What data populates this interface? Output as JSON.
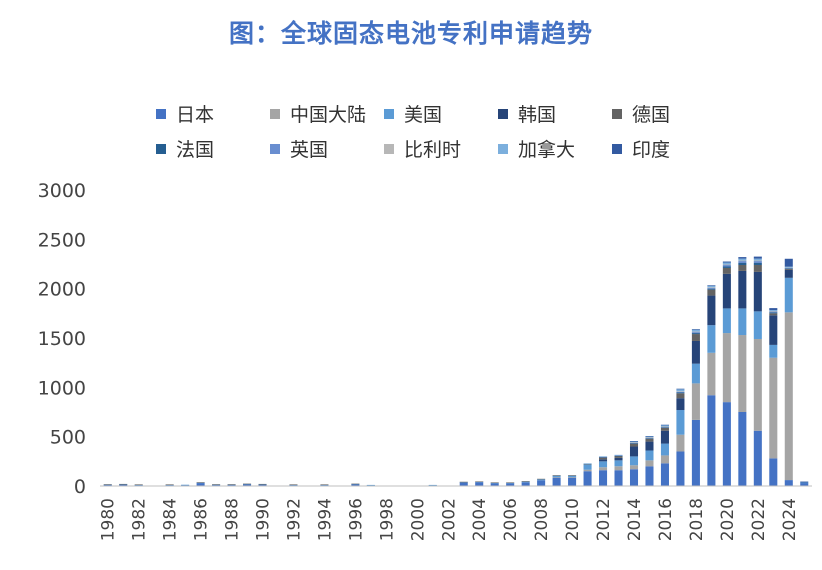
{
  "chart_data": {
    "type": "bar",
    "stacked": true,
    "title": "图：全球固态电池专利申请趋势",
    "xlabel": "",
    "ylabel": "",
    "ylim": [
      0,
      3000
    ],
    "yticks": [
      0,
      500,
      1000,
      1500,
      2000,
      2500,
      3000
    ],
    "legend_position": "top",
    "x": [
      1980,
      1981,
      1982,
      1983,
      1984,
      1985,
      1986,
      1987,
      1988,
      1989,
      1990,
      1991,
      1992,
      1993,
      1994,
      1995,
      1996,
      1997,
      1998,
      1999,
      2000,
      2001,
      2002,
      2003,
      2004,
      2005,
      2006,
      2007,
      2008,
      2009,
      2010,
      2011,
      2012,
      2013,
      2014,
      2015,
      2016,
      2017,
      2018,
      2019,
      2020,
      2021,
      2022,
      2023,
      2024,
      2025
    ],
    "xtick_labels": [
      "1980",
      "1982",
      "1984",
      "1986",
      "1988",
      "1990",
      "1992",
      "1994",
      "1996",
      "1998",
      "2000",
      "2002",
      "2004",
      "2006",
      "2008",
      "2010",
      "2012",
      "2014",
      "2016",
      "2018",
      "2020",
      "2022",
      "2024"
    ],
    "series": [
      {
        "name": "日本",
        "color": "#4472C4",
        "values": [
          12,
          15,
          10,
          5,
          10,
          10,
          30,
          12,
          12,
          18,
          15,
          5,
          10,
          3,
          10,
          3,
          18,
          8,
          3,
          3,
          3,
          8,
          3,
          35,
          38,
          28,
          28,
          38,
          58,
          85,
          85,
          150,
          160,
          160,
          170,
          200,
          230,
          350,
          670,
          920,
          850,
          750,
          560,
          280,
          60,
          30
        ]
      },
      {
        "name": "中国大陆",
        "color": "#A5A5A5",
        "values": [
          0,
          0,
          0,
          0,
          0,
          0,
          0,
          0,
          0,
          0,
          0,
          0,
          0,
          0,
          0,
          0,
          0,
          0,
          0,
          0,
          0,
          0,
          0,
          0,
          0,
          0,
          0,
          0,
          0,
          5,
          5,
          15,
          30,
          40,
          40,
          60,
          80,
          170,
          370,
          430,
          700,
          780,
          930,
          1020,
          1700,
          0
        ]
      },
      {
        "name": "美国",
        "color": "#5B9BD5",
        "values": [
          3,
          3,
          3,
          0,
          3,
          3,
          5,
          3,
          3,
          3,
          3,
          0,
          3,
          0,
          3,
          0,
          3,
          3,
          0,
          0,
          0,
          3,
          0,
          5,
          5,
          5,
          5,
          8,
          10,
          15,
          15,
          55,
          60,
          60,
          90,
          100,
          120,
          250,
          200,
          280,
          250,
          270,
          280,
          130,
          350,
          5
        ]
      },
      {
        "name": "韩国",
        "color": "#264478",
        "values": [
          0,
          0,
          0,
          0,
          0,
          0,
          0,
          0,
          0,
          0,
          0,
          0,
          0,
          0,
          0,
          0,
          0,
          0,
          0,
          0,
          0,
          0,
          0,
          0,
          0,
          0,
          0,
          0,
          0,
          0,
          0,
          0,
          20,
          25,
          100,
          90,
          130,
          120,
          230,
          300,
          350,
          380,
          400,
          300,
          80,
          0
        ]
      },
      {
        "name": "德国",
        "color": "#636363",
        "values": [
          3,
          3,
          3,
          0,
          3,
          0,
          3,
          3,
          3,
          3,
          3,
          0,
          3,
          0,
          3,
          0,
          3,
          0,
          0,
          0,
          0,
          0,
          0,
          3,
          3,
          3,
          3,
          3,
          5,
          5,
          5,
          5,
          20,
          20,
          30,
          30,
          30,
          50,
          70,
          60,
          60,
          60,
          70,
          20,
          10,
          0
        ]
      },
      {
        "name": "法国",
        "color": "#255E91",
        "values": [
          0,
          0,
          0,
          0,
          0,
          0,
          0,
          0,
          0,
          0,
          0,
          0,
          0,
          0,
          0,
          0,
          0,
          0,
          0,
          0,
          0,
          0,
          0,
          0,
          0,
          0,
          0,
          0,
          0,
          0,
          0,
          0,
          3,
          3,
          5,
          5,
          5,
          8,
          10,
          10,
          15,
          20,
          20,
          10,
          5,
          0
        ]
      },
      {
        "name": "英国",
        "color": "#698ED0",
        "values": [
          0,
          0,
          0,
          0,
          0,
          0,
          0,
          0,
          0,
          0,
          0,
          0,
          0,
          0,
          0,
          0,
          0,
          0,
          0,
          0,
          0,
          0,
          0,
          0,
          0,
          0,
          0,
          0,
          0,
          0,
          0,
          0,
          3,
          3,
          5,
          5,
          5,
          8,
          10,
          10,
          15,
          20,
          20,
          10,
          5,
          0
        ]
      },
      {
        "name": "比利时",
        "color": "#B7B7B7",
        "values": [
          0,
          0,
          0,
          0,
          0,
          0,
          0,
          0,
          0,
          0,
          0,
          0,
          0,
          0,
          0,
          0,
          0,
          0,
          0,
          0,
          0,
          0,
          0,
          0,
          0,
          0,
          0,
          0,
          0,
          0,
          0,
          0,
          0,
          0,
          3,
          3,
          3,
          5,
          5,
          5,
          5,
          5,
          5,
          3,
          3,
          0
        ]
      },
      {
        "name": "加拿大",
        "color": "#7CAFDD",
        "values": [
          0,
          0,
          0,
          0,
          0,
          0,
          0,
          0,
          0,
          0,
          0,
          0,
          0,
          0,
          0,
          0,
          0,
          0,
          0,
          0,
          0,
          0,
          0,
          0,
          0,
          0,
          0,
          0,
          0,
          0,
          0,
          5,
          5,
          5,
          10,
          10,
          15,
          20,
          20,
          15,
          20,
          20,
          20,
          10,
          10,
          0
        ]
      },
      {
        "name": "印度",
        "color": "#335AA1",
        "values": [
          0,
          0,
          0,
          0,
          0,
          0,
          0,
          0,
          0,
          0,
          0,
          0,
          0,
          0,
          0,
          0,
          0,
          0,
          0,
          0,
          0,
          0,
          0,
          0,
          0,
          0,
          0,
          0,
          0,
          0,
          0,
          0,
          0,
          0,
          3,
          3,
          3,
          5,
          5,
          5,
          10,
          15,
          20,
          20,
          80,
          10
        ]
      }
    ]
  }
}
